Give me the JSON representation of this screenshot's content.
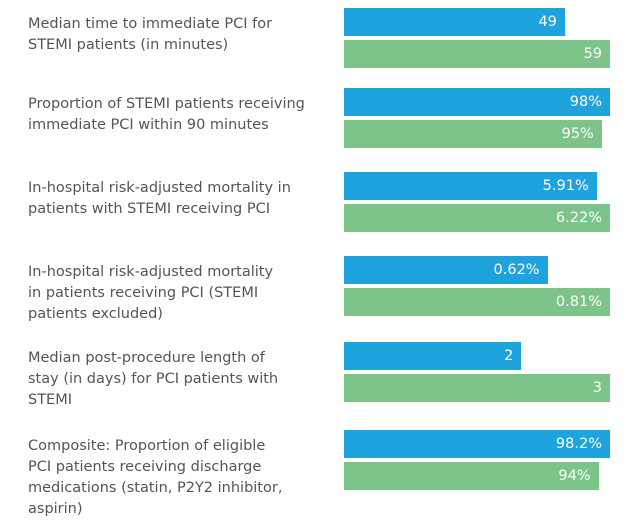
{
  "chart_data": {
    "type": "bar",
    "categories": [
      "Median time to immediate PCI for\nSTEMI patients (in minutes)",
      "Proportion of STEMI patients receiving\nimmediate PCI within 90 minutes",
      "In-hospital risk-adjusted mortality in\npatients with STEMI receiving PCI",
      "In-hospital risk-adjusted mortality\nin patients receiving PCI (STEMI\npatients excluded)",
      "Median post-procedure length of\nstay (in days) for PCI patients with\nSTEMI",
      "Composite: Proportion of eligible\nPCI patients receiving discharge\nmedications (statin, P2Y2 inhibitor,\naspirin)"
    ],
    "series": [
      {
        "color": "#1fa3dc",
        "values": [
          49,
          98,
          5.91,
          0.62,
          2,
          98.2
        ],
        "value_labels": [
          "49",
          "98%",
          "5.91%",
          "0.62%",
          "2",
          "98.2%"
        ]
      },
      {
        "color": "#7dc48a",
        "values": [
          59,
          95,
          6.22,
          0.81,
          3,
          94
        ],
        "value_labels": [
          "59",
          "95%",
          "6.22%",
          "0.81%",
          "3",
          "94%"
        ]
      }
    ]
  }
}
